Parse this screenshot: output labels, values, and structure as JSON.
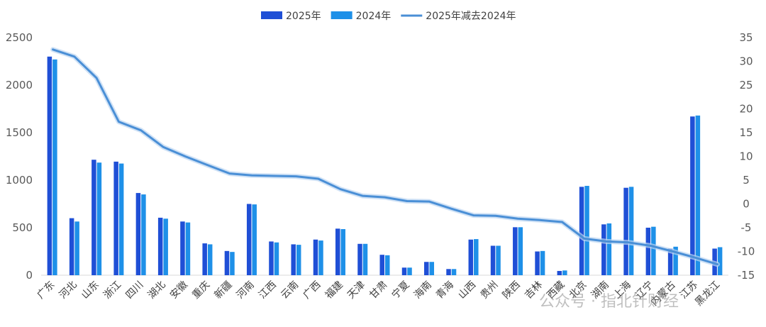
{
  "chart_data": {
    "type": "bar",
    "categories": [
      "广东",
      "河北",
      "山东",
      "浙江",
      "四川",
      "湖北",
      "安徽",
      "重庆",
      "新疆",
      "河南",
      "江西",
      "云南",
      "广西",
      "福建",
      "天津",
      "甘肃",
      "宁夏",
      "海南",
      "青海",
      "山西",
      "贵州",
      "陕西",
      "吉林",
      "西藏",
      "北京",
      "湖南",
      "上海",
      "辽宁",
      "内蒙古",
      "江苏",
      "黑龙江"
    ],
    "series": [
      {
        "name": "2025年",
        "axis": "left",
        "type": "bar",
        "color": "#1f4fd6",
        "values": [
          2300,
          600,
          1215,
          1195,
          865,
          605,
          565,
          335,
          255,
          750,
          355,
          325,
          375,
          490,
          330,
          215,
          80,
          140,
          65,
          375,
          310,
          505,
          250,
          45,
          930,
          535,
          920,
          500,
          280,
          1670,
          280
        ]
      },
      {
        "name": "2024年",
        "axis": "left",
        "type": "bar",
        "color": "#1e90e8",
        "values": [
          2270,
          565,
          1185,
          1175,
          850,
          595,
          555,
          325,
          245,
          745,
          345,
          320,
          365,
          485,
          330,
          210,
          80,
          140,
          65,
          380,
          310,
          505,
          255,
          50,
          940,
          545,
          930,
          510,
          300,
          1680,
          295
        ]
      },
      {
        "name": "2025年减去2024年",
        "axis": "right",
        "type": "line",
        "color": "#4a8fd6",
        "values": [
          32.5,
          31,
          26.5,
          17.3,
          15.5,
          12,
          10,
          8.2,
          6.4,
          6,
          5.9,
          5.8,
          5.3,
          3.1,
          1.7,
          1.4,
          0.6,
          0.5,
          -1,
          -2.4,
          -2.5,
          -3.1,
          -3.4,
          -3.8,
          -7.3,
          -7.9,
          -8.1,
          -8.8,
          -10,
          -11.3,
          -12.7
        ]
      }
    ],
    "y_left": {
      "min": 0,
      "max": 2500,
      "ticks": [
        0,
        500,
        1000,
        1500,
        2000,
        2500
      ]
    },
    "y_right": {
      "min": -15,
      "max": 35,
      "ticks": [
        -15,
        -10,
        -5,
        0,
        5,
        10,
        15,
        20,
        25,
        30,
        35
      ]
    },
    "legend_position": "top-center",
    "grid": false
  },
  "watermark": "公众号 · 指北针财经"
}
